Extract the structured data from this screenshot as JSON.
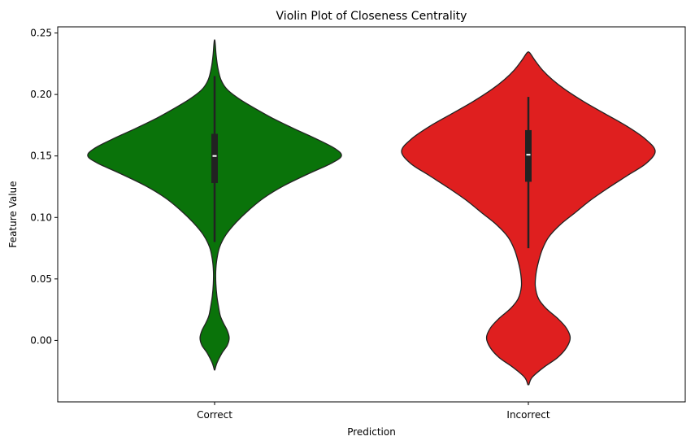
{
  "chart_data": {
    "type": "violin",
    "title": "Violin Plot of Closeness Centrality",
    "xlabel": "Prediction",
    "ylabel": "Feature Value",
    "ylim": [
      -0.05,
      0.255
    ],
    "yticks": [
      0.0,
      0.05,
      0.1,
      0.15,
      0.2,
      0.25
    ],
    "ytick_labels": [
      "0.00",
      "0.05",
      "0.10",
      "0.15",
      "0.20",
      "0.25"
    ],
    "grid": false,
    "categories": [
      "Correct",
      "Incorrect"
    ],
    "violins": [
      {
        "category": "Correct",
        "color": "#0a730a",
        "min": -0.024,
        "max": 0.244,
        "median": 0.15,
        "q1": 0.128,
        "q3": 0.168,
        "whisker_low": 0.08,
        "whisker_high": 0.215,
        "density": [
          [
            -0.024,
            0.002
          ],
          [
            -0.018,
            0.02
          ],
          [
            -0.01,
            0.06
          ],
          [
            -0.004,
            0.1
          ],
          [
            0.002,
            0.115
          ],
          [
            0.008,
            0.1
          ],
          [
            0.014,
            0.07
          ],
          [
            0.02,
            0.045
          ],
          [
            0.028,
            0.03
          ],
          [
            0.036,
            0.018
          ],
          [
            0.046,
            0.01
          ],
          [
            0.056,
            0.009
          ],
          [
            0.066,
            0.018
          ],
          [
            0.076,
            0.04
          ],
          [
            0.086,
            0.09
          ],
          [
            0.096,
            0.17
          ],
          [
            0.106,
            0.27
          ],
          [
            0.116,
            0.39
          ],
          [
            0.126,
            0.55
          ],
          [
            0.136,
            0.75
          ],
          [
            0.144,
            0.92
          ],
          [
            0.15,
            1.0
          ],
          [
            0.156,
            0.95
          ],
          [
            0.164,
            0.8
          ],
          [
            0.172,
            0.63
          ],
          [
            0.18,
            0.47
          ],
          [
            0.188,
            0.33
          ],
          [
            0.196,
            0.2
          ],
          [
            0.204,
            0.1
          ],
          [
            0.212,
            0.05
          ],
          [
            0.222,
            0.025
          ],
          [
            0.232,
            0.012
          ],
          [
            0.24,
            0.006
          ],
          [
            0.244,
            0.002
          ]
        ]
      },
      {
        "category": "Incorrect",
        "color": "#df1f1f",
        "min": -0.036,
        "max": 0.234,
        "median": 0.151,
        "q1": 0.129,
        "q3": 0.171,
        "whisker_low": 0.075,
        "whisker_high": 0.198,
        "density": [
          [
            -0.036,
            0.004
          ],
          [
            -0.03,
            0.03
          ],
          [
            -0.022,
            0.12
          ],
          [
            -0.014,
            0.23
          ],
          [
            -0.006,
            0.3
          ],
          [
            0.002,
            0.33
          ],
          [
            0.01,
            0.3
          ],
          [
            0.018,
            0.23
          ],
          [
            0.026,
            0.14
          ],
          [
            0.034,
            0.08
          ],
          [
            0.044,
            0.055
          ],
          [
            0.054,
            0.06
          ],
          [
            0.064,
            0.08
          ],
          [
            0.074,
            0.11
          ],
          [
            0.084,
            0.16
          ],
          [
            0.094,
            0.25
          ],
          [
            0.104,
            0.37
          ],
          [
            0.114,
            0.49
          ],
          [
            0.124,
            0.63
          ],
          [
            0.134,
            0.78
          ],
          [
            0.144,
            0.93
          ],
          [
            0.154,
            1.0
          ],
          [
            0.164,
            0.92
          ],
          [
            0.174,
            0.78
          ],
          [
            0.184,
            0.61
          ],
          [
            0.194,
            0.44
          ],
          [
            0.204,
            0.29
          ],
          [
            0.212,
            0.19
          ],
          [
            0.22,
            0.11
          ],
          [
            0.228,
            0.05
          ],
          [
            0.234,
            0.01
          ]
        ]
      }
    ]
  }
}
